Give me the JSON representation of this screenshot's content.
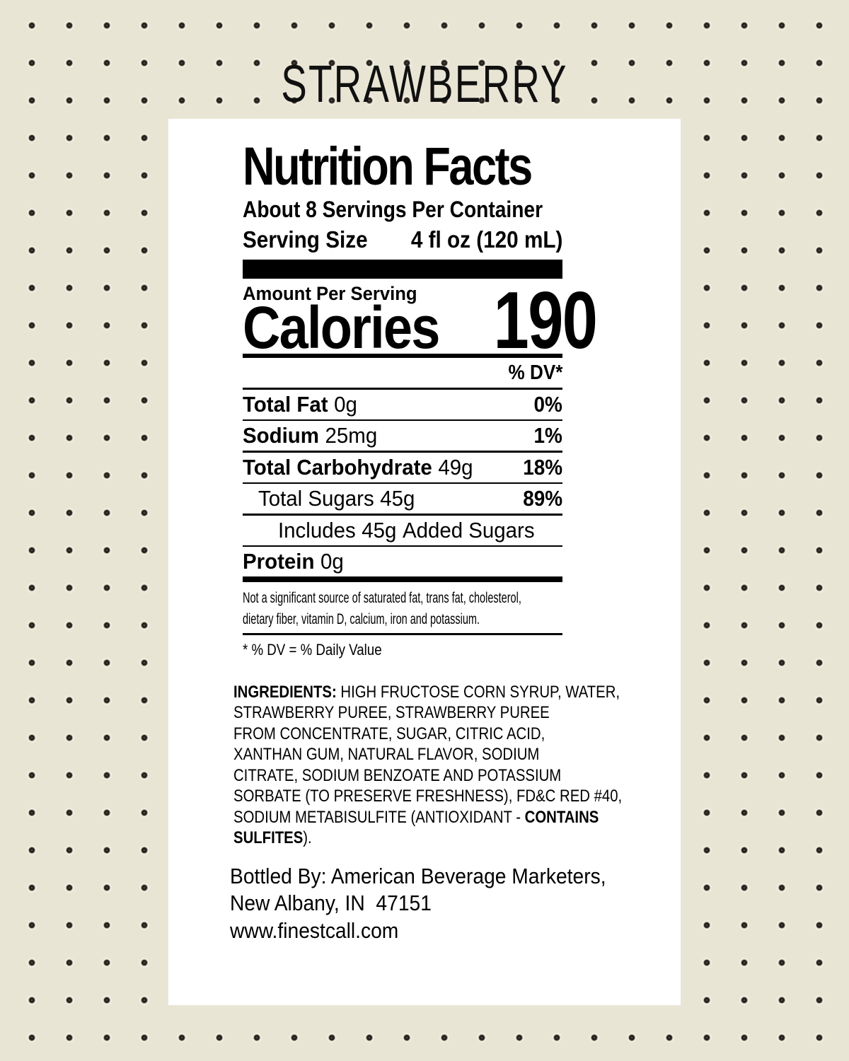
{
  "page": {
    "flavor_title": "STRAWBERRY"
  },
  "colors": {
    "background": "#e9e5d5",
    "dot": "#211e19",
    "panel": "#ffffff",
    "text": "#000000"
  },
  "nutrition_label": {
    "title": "Nutrition Facts",
    "servings_per_container": "About 8 Servings Per Container",
    "serving_size_label": "Serving Size",
    "serving_size_value": "4 fl oz (120 mL)",
    "amount_per_serving_label": "Amount Per Serving",
    "calories_label": "Calories",
    "calories_value": "190",
    "dv_header": "% DV*",
    "rows": [
      {
        "name": "Total Fat",
        "amount": "0g",
        "dv": "0%",
        "bold": true,
        "indent": 0
      },
      {
        "name": "Sodium",
        "amount": "25mg",
        "dv": "1%",
        "bold": true,
        "indent": 0
      },
      {
        "name": "Total Carbohydrate",
        "amount": "49g",
        "dv": "18%",
        "bold": true,
        "indent": 0
      },
      {
        "name": "Total Sugars",
        "amount": "45g",
        "dv": "89%",
        "bold": false,
        "indent": 1
      },
      {
        "name": "Includes",
        "amount": "45g",
        "suffix": "Added Sugars",
        "dv": "",
        "bold": false,
        "indent": 2
      },
      {
        "name": "Protein",
        "amount": "0g",
        "dv": "",
        "bold": true,
        "indent": 0
      }
    ],
    "footnote_lines": [
      "Not a significant source of saturated fat, trans fat, cholesterol,",
      "dietary fiber, vitamin D, calcium, iron and potassium."
    ],
    "dv_note": "* % DV = % Daily Value"
  },
  "ingredients": {
    "segments": [
      {
        "text": "INGREDIENTS:",
        "bold": true
      },
      {
        "text": " HIGH FRUCTOSE CORN SYRUP, WATER,",
        "bold": false,
        "br": true
      },
      {
        "text": "STRAWBERRY PUREE, STRAWBERRY PUREE",
        "bold": false,
        "br": true
      },
      {
        "text": "FROM CONCENTRATE, SUGAR, CITRIC ACID,",
        "bold": false,
        "br": true
      },
      {
        "text": "XANTHAN GUM, NATURAL FLAVOR, SODIUM",
        "bold": false,
        "br": true
      },
      {
        "text": "CITRATE, SODIUM BENZOATE AND POTASSIUM",
        "bold": false,
        "br": true
      },
      {
        "text": "SORBATE (TO PRESERVE FRESHNESS), FD&C RED #40,",
        "bold": false,
        "br": true
      },
      {
        "text": "SODIUM METABISULFITE (ANTIOXIDANT - ",
        "bold": false
      },
      {
        "text": "CONTAINS",
        "bold": true,
        "br": true
      },
      {
        "text": "SULFITES",
        "bold": true
      },
      {
        "text": ").",
        "bold": false
      }
    ]
  },
  "bottler": {
    "line1": "Bottled By: American Beverage Marketers,",
    "line2": "New Albany, IN  47151",
    "website": "www.finestcall.com"
  }
}
